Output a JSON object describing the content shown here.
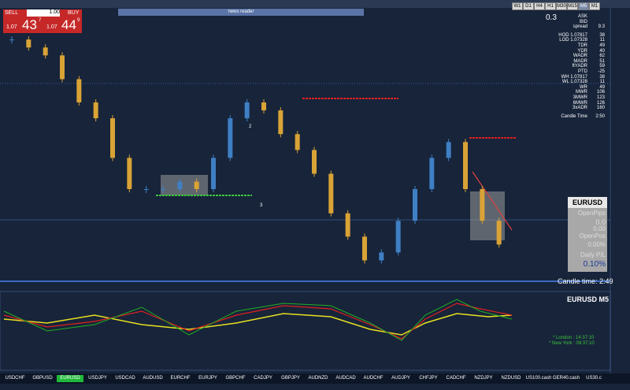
{
  "toolbar": {
    "sell": "SELL",
    "lot": "1.00",
    "buy": "BUY",
    "bid_big": "1.07",
    "bid_pips": "43",
    "bid_frac": "7",
    "ask_big": "1.07",
    "ask_pips": "44",
    "ask_frac": "9"
  },
  "news": "news reader",
  "timeframes": [
    "W1",
    "D1",
    "H4",
    "H1",
    "M30",
    "M15",
    "M5",
    "M1"
  ],
  "spread_top": "0.3",
  "stats": [
    [
      "ASK",
      ""
    ],
    [
      "BID",
      ""
    ],
    [
      "spread",
      "9.3"
    ],
    [
      "HOD 1.07817",
      "38"
    ],
    [
      "LOD 1.07328",
      "11"
    ],
    [
      "TDR",
      "49"
    ],
    [
      "YDR",
      "40"
    ],
    [
      "WADR",
      "62"
    ],
    [
      "MADR",
      "51"
    ],
    [
      "ftYADR",
      "59"
    ],
    [
      "PTD",
      "-25"
    ],
    [
      "WH 1.07817",
      "38"
    ],
    [
      "WL 1.07328",
      "11"
    ],
    [
      "WR",
      "49"
    ],
    [
      "MWR",
      "106"
    ],
    [
      "3MWR",
      "123"
    ],
    [
      "6MWR",
      "126"
    ],
    [
      "3xADR",
      "160"
    ],
    [
      "Candle Time",
      "2:50"
    ]
  ],
  "panel": {
    "symbol": "EURUSD",
    "open_pips_label": "OpenPips",
    "open_pips": "0.0",
    "open_value": "0.00",
    "open_pos_label": "OpenPos",
    "open_pos": "0.00%",
    "daily_label": "Daily P/L",
    "daily": "0.10%"
  },
  "candle_time": "Candle time: 2:49",
  "sub_title": "EURUSD  M5",
  "markers": [
    "2",
    "3"
  ],
  "sessions": [
    "* London : 14:37:10",
    "* New York : 09:37:10"
  ],
  "chart": {
    "ylim": [
      1.07315,
      1.07856
    ],
    "closes": [
      1.078,
      1.07784,
      1.07768,
      1.0772,
      1.07673,
      1.07641,
      1.07561,
      1.07498,
      1.07498,
      1.07498,
      1.07513,
      1.07498,
      1.07561,
      1.07641,
      1.07673,
      1.07657,
      1.07609,
      1.07577,
      1.07529,
      1.07449,
      1.07402,
      1.07354,
      1.0737,
      1.07434,
      1.07498,
      1.07561,
      1.07593,
      1.07498,
      1.07434,
      1.07386
    ]
  },
  "symbols": [
    "USDCHF",
    "GBPUSD",
    "EURUSD",
    "USDJPY",
    "USDCAD",
    "AUDUSD",
    "EURCHF",
    "EURJPY",
    "GBPCHF",
    "CADJPY",
    "GBPJPY",
    "AUDNZD",
    "AUDCAD",
    "AUDCHF",
    "AUDJPY",
    "CHFJPY",
    "CADCHF",
    "NZDJPY",
    "NZDUSD",
    "US100.cash",
    "GER40.cash",
    "US30.c"
  ]
}
